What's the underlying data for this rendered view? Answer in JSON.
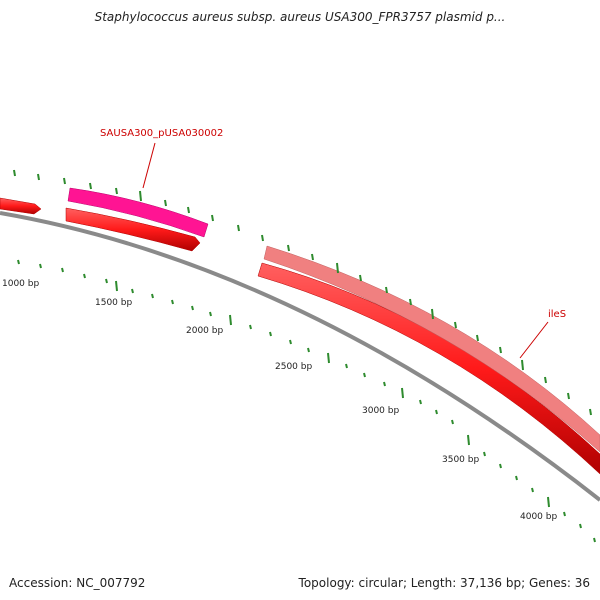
{
  "title": "Staphylococcus aureus subsp. aureus USA300_FPR3757 plasmid p...",
  "footer": {
    "accession": "Accession: NC_007792",
    "summary": "Topology: circular; Length: 37,136 bp; Genes: 36"
  },
  "colors": {
    "backbone": "#8a8a8a",
    "tick": "#2e8b2e",
    "forward_gene": "#ff2a2a",
    "highlight_gene": "#ff1493",
    "pale_gene": "#f08080",
    "label": "#cc0000"
  },
  "scale": {
    "unit": "bp",
    "labels": [
      "1000 bp",
      "1500 bp",
      "2000 bp",
      "2500 bp",
      "3000 bp",
      "3500 bp",
      "4000 bp"
    ]
  },
  "genes": [
    {
      "name": "SAUSA300_pUSA030002",
      "track": "outer",
      "color": "highlight_gene"
    },
    {
      "name": "ileS",
      "track": "outer",
      "color": "pale_gene"
    }
  ]
}
